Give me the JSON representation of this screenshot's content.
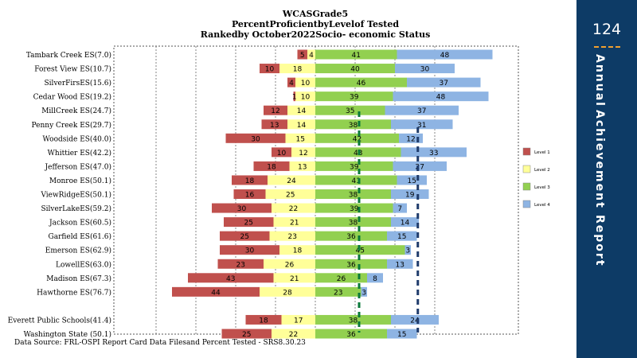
{
  "sidebar": {
    "page_number": "124",
    "words": [
      "Annual",
      "Achievement",
      "Report"
    ]
  },
  "footer": {
    "source": "Data Source: FRL-OSPI Report Card Data Filesand Percent  Tested - SRS8.30.23"
  },
  "chart_data": {
    "type": "bar",
    "stacked": "diverging",
    "title": "WCASGrade5",
    "subtitle_lines": [
      "PercentProficientbyLevelof Tested",
      "Rankedby October2022Socio- economic Status"
    ],
    "grid": true,
    "legend_position": "right",
    "categories": [
      "Tambark Creek ES(7.0)",
      "Forest View ES(10.7)",
      "SilverFirsES(15.6)",
      "Cedar Wood ES(19.2)",
      "MillCreek ES(24.7)",
      "Penny Creek ES(29.7)",
      "Woodside ES(40.0)",
      "Whittier ES(42.2)",
      "Jefferson   ES(47.0)",
      "Monroe ES(50.1)",
      "ViewRidgeES(50.1)",
      "SilverLakeES(59.2)",
      "Jackson ES(60.5)",
      "Garfield ES(61.6)",
      "Emerson ES(62.9)",
      "LowellES(63.0)",
      "Madison ES(67.3)",
      "Hawthorne  ES(76.7)",
      "",
      "Everett  Public Schools(41.4)",
      "Washington State (50.1)"
    ],
    "series": [
      {
        "name": "Level 1",
        "color": "#c0504d",
        "values": [
          5,
          10,
          4,
          1,
          12,
          13,
          30,
          10,
          18,
          18,
          16,
          30,
          25,
          25,
          30,
          23,
          43,
          44,
          null,
          18,
          25
        ]
      },
      {
        "name": "Level 2",
        "color": "#ffff99",
        "values": [
          4,
          18,
          10,
          10,
          14,
          14,
          15,
          12,
          13,
          24,
          25,
          22,
          21,
          23,
          18,
          26,
          21,
          28,
          null,
          17,
          22
        ]
      },
      {
        "name": "Level 3",
        "color": "#92d050",
        "values": [
          41,
          40,
          46,
          39,
          35,
          38,
          42,
          43,
          39,
          41,
          38,
          39,
          38,
          36,
          45,
          36,
          26,
          23,
          null,
          38,
          36
        ]
      },
      {
        "name": "Level 4",
        "color": "#8eb4e3",
        "values": [
          48,
          30,
          37,
          48,
          37,
          31,
          12,
          33,
          27,
          15,
          19,
          7,
          14,
          15,
          3,
          13,
          8,
          3,
          null,
          24,
          15
        ]
      }
    ]
  }
}
